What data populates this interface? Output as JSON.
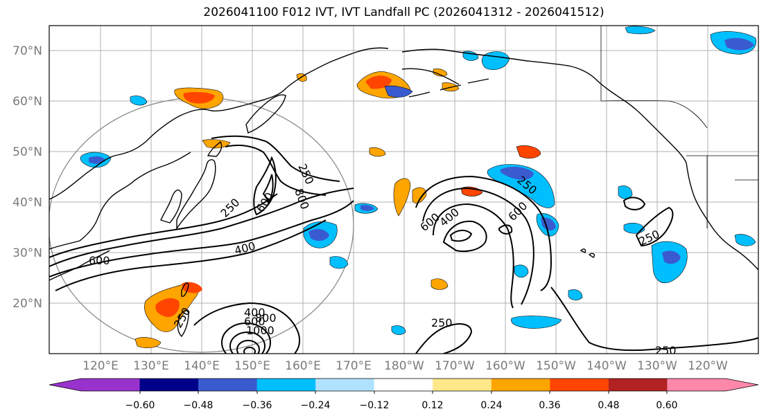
{
  "title": "2026041100 F012 IVT, IVT Landfall PC (2026041312 - 2026041512)",
  "latitude_labels": [
    "70°N",
    "60°N",
    "50°N",
    "40°N",
    "30°N",
    "20°N"
  ],
  "longitude_labels": [
    "120°E",
    "130°E",
    "140°E",
    "150°E",
    "160°E",
    "170°E",
    "180°W",
    "170°W",
    "160°W",
    "150°W",
    "140°W",
    "130°W",
    "120°W"
  ],
  "colorbar": {
    "colors": [
      "#9932cc",
      "#00008b",
      "#3a5bd0",
      "#00bfff",
      "#b0e2ff",
      "#ffffff",
      "#ffe88a",
      "#ffa500",
      "#ff4500",
      "#b22222",
      "#ff88aa"
    ],
    "tick_labels": [
      "−0.60",
      "−0.48",
      "−0.36",
      "−0.24",
      "−0.12",
      "0.12",
      "0.24",
      "0.36",
      "0.48",
      "0.60"
    ]
  },
  "contour_labels": [
    {
      "text": "250"
    },
    {
      "text": "250"
    },
    {
      "text": "600"
    },
    {
      "text": "400"
    },
    {
      "text": "800"
    },
    {
      "text": "600"
    },
    {
      "text": "400"
    },
    {
      "text": "600"
    },
    {
      "text": "600"
    },
    {
      "text": "250"
    },
    {
      "text": "250"
    },
    {
      "text": "400"
    },
    {
      "text": "600"
    },
    {
      "text": "800"
    },
    {
      "text": "1000"
    },
    {
      "text": "250"
    },
    {
      "text": "250"
    },
    {
      "text": "250"
    }
  ]
}
